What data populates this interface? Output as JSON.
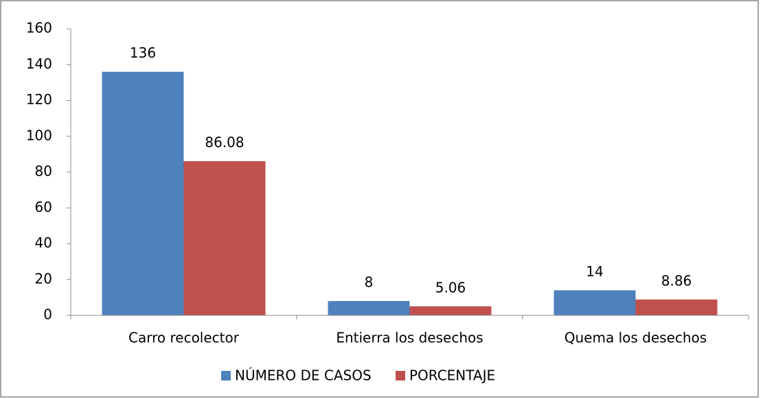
{
  "chart_data": {
    "type": "bar",
    "categories": [
      "Carro recolector",
      "Entierra los desechos",
      "Quema los desechos"
    ],
    "series": [
      {
        "name": "NÚMERO DE CASOS",
        "color": "#4f81bd",
        "values": [
          136,
          8,
          14
        ]
      },
      {
        "name": "PORCENTAJE",
        "color": "#c0504d",
        "values": [
          86.08,
          5.06,
          8.86
        ]
      }
    ],
    "ylim": [
      0,
      160
    ],
    "yticks": [
      0,
      20,
      40,
      60,
      80,
      100,
      120,
      140,
      160
    ],
    "grid": false,
    "legend": "bottom"
  }
}
